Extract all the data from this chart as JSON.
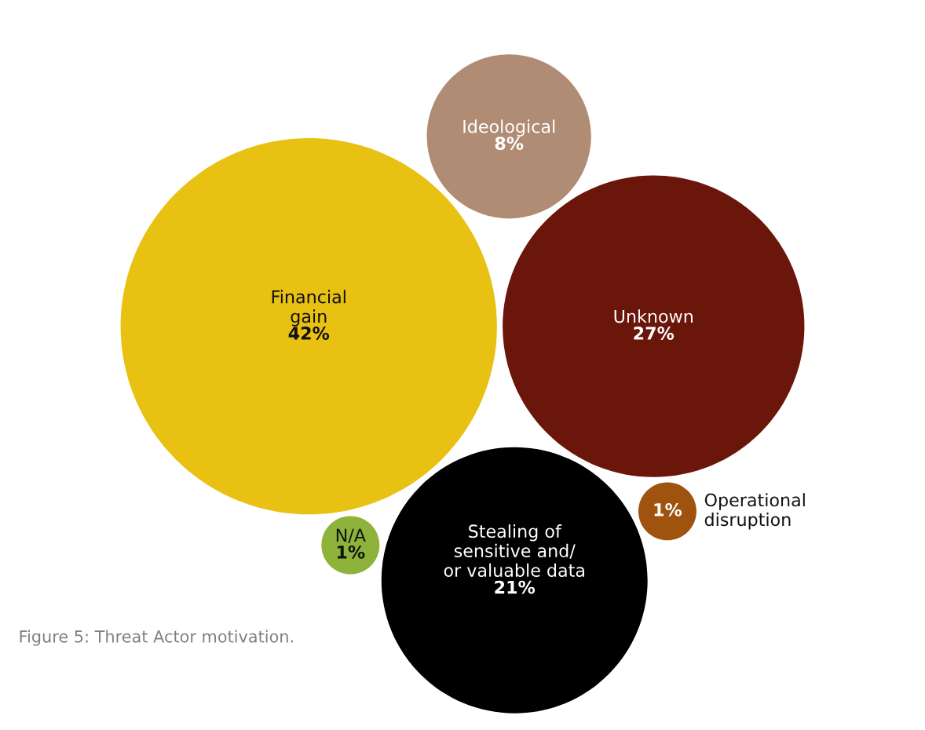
{
  "chart_data": {
    "type": "other",
    "categories": [
      "Financial\ngain",
      "Unknown",
      "Stealing of\nsensitive and/\nor valuable data",
      "Ideological",
      "N/A",
      "Operational\ndisruption"
    ],
    "values": [
      42,
      27,
      21,
      8,
      1,
      1
    ],
    "value_labels": [
      "42%",
      "27%",
      "21%",
      "8%",
      "1%",
      "1%"
    ],
    "colors": [
      "#e8c113",
      "#6b160b",
      "#000000",
      "#b08c74",
      "#8db33a",
      "#a0520f"
    ],
    "annotations": [
      "Figure 5: Threat Actor motivation."
    ]
  }
}
